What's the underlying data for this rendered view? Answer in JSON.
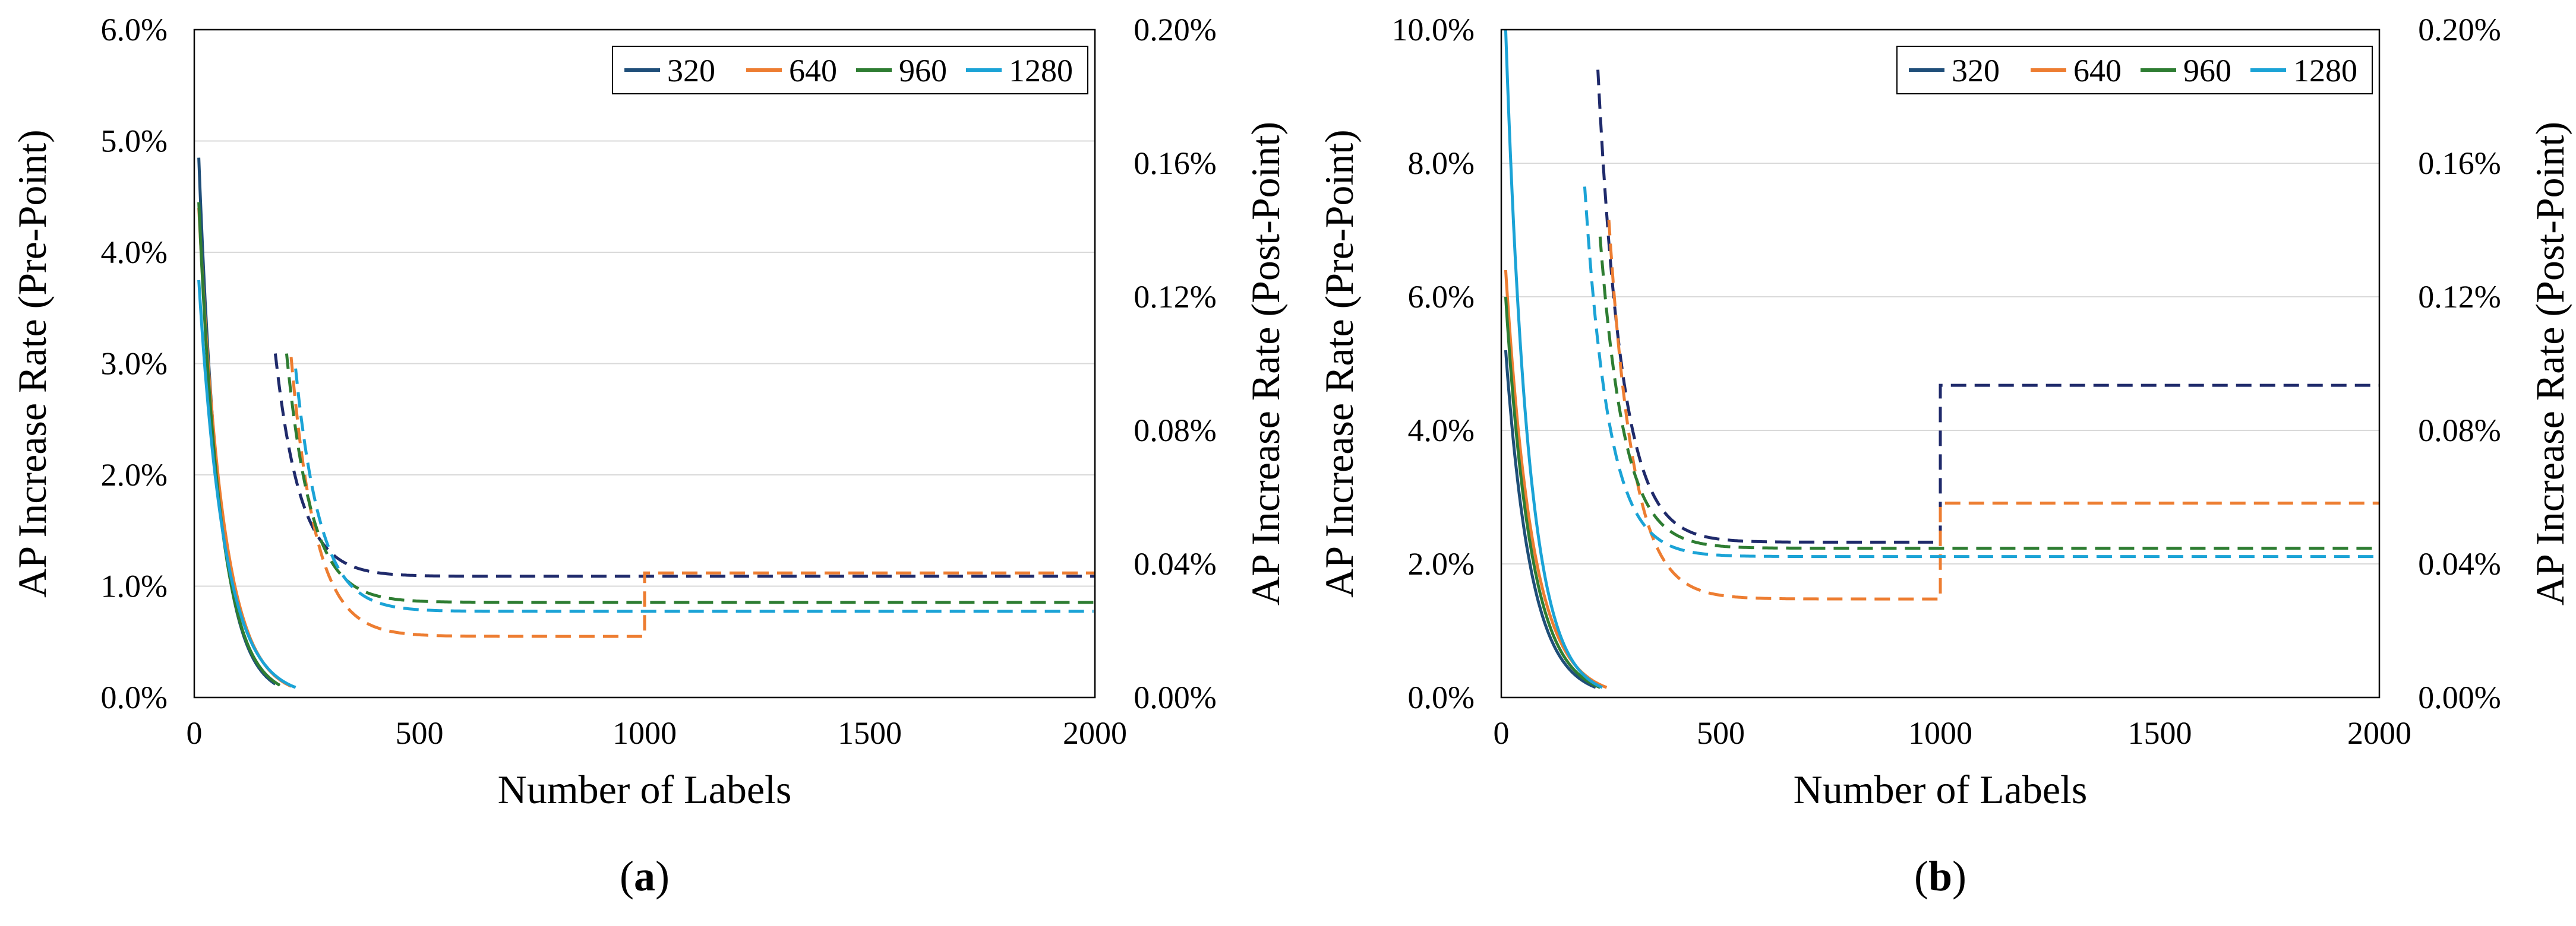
{
  "colors": {
    "s320": "#1f4e79",
    "s640": "#ed7d31",
    "s960": "#2e7d32",
    "s1280": "#1ba3d6",
    "post320": "#1f2a6b",
    "grid": "#d9d9d9"
  },
  "chart_data": [
    {
      "type": "line",
      "panel": "a",
      "caption_letter": "a",
      "xlabel": "Number of Labels",
      "ylabel": "AP Increase Rate (Pre-Point)",
      "y2label": "AP Increase Rate (Post-Point)",
      "xlim": [
        0,
        2000
      ],
      "ylim": [
        0,
        6.0
      ],
      "y2lim": [
        0,
        0.2
      ],
      "x_ticks": [
        0,
        500,
        1000,
        1500,
        2000
      ],
      "y_ticks": [
        0,
        1,
        2,
        3,
        4,
        5,
        6
      ],
      "y2_ticks": [
        0,
        0.04,
        0.08,
        0.12,
        0.16,
        0.2
      ],
      "y_tick_labels": [
        "0.0%",
        "1.0%",
        "2.0%",
        "3.0%",
        "4.0%",
        "5.0%",
        "6.0%"
      ],
      "y2_tick_labels": [
        "0.00%",
        "0.04%",
        "0.08%",
        "0.12%",
        "0.16%",
        "0.20%"
      ],
      "legend": [
        "320",
        "640",
        "960",
        "1280"
      ],
      "series_pre": [
        {
          "name": "320",
          "x0": 10,
          "x1": 180,
          "start": 4.85,
          "end": 0.12
        },
        {
          "name": "640",
          "x0": 10,
          "x1": 215,
          "start": 4.4,
          "end": 0.1
        },
        {
          "name": "960",
          "x0": 10,
          "x1": 190,
          "start": 4.45,
          "end": 0.11
        },
        {
          "name": "1280",
          "x0": 10,
          "x1": 225,
          "start": 3.75,
          "end": 0.09
        }
      ],
      "series_post": [
        {
          "name": "320",
          "x0": 180,
          "start": 0.103,
          "plateau": 0.0363,
          "jump_x": null,
          "after": null
        },
        {
          "name": "640",
          "x0": 215,
          "start": 0.102,
          "plateau": 0.0183,
          "jump_x": 1000,
          "after": 0.0373
        },
        {
          "name": "960",
          "x0": 205,
          "start": 0.103,
          "plateau": 0.0285,
          "jump_x": null,
          "after": null
        },
        {
          "name": "1280",
          "x0": 225,
          "start": 0.0985,
          "plateau": 0.0258,
          "jump_x": null,
          "after": null
        }
      ]
    },
    {
      "type": "line",
      "panel": "b",
      "caption_letter": "b",
      "xlabel": "Number of Labels",
      "ylabel": "AP Increase Rate (Pre-Point)",
      "y2label": "AP Increase Rate (Post-Point)",
      "xlim": [
        0,
        2000
      ],
      "ylim": [
        0,
        10.0
      ],
      "y2lim": [
        0,
        0.2
      ],
      "x_ticks": [
        0,
        500,
        1000,
        1500,
        2000
      ],
      "y_ticks": [
        0,
        2,
        4,
        6,
        8,
        10
      ],
      "y2_ticks": [
        0,
        0.04,
        0.08,
        0.12,
        0.16,
        0.2
      ],
      "y_tick_labels": [
        "0.0%",
        "2.0%",
        "4.0%",
        "6.0%",
        "8.0%",
        "10.0%"
      ],
      "y2_tick_labels": [
        "0.00%",
        "0.04%",
        "0.08%",
        "0.12%",
        "0.16%",
        "0.20%"
      ],
      "legend": [
        "320",
        "640",
        "960",
        "1280"
      ],
      "series_pre": [
        {
          "name": "320",
          "x0": 10,
          "x1": 215,
          "start": 5.2,
          "end": 0.15
        },
        {
          "name": "640",
          "x0": 10,
          "x1": 240,
          "start": 6.4,
          "end": 0.15
        },
        {
          "name": "960",
          "x0": 10,
          "x1": 225,
          "start": 6.0,
          "end": 0.15
        },
        {
          "name": "1280",
          "x0": 10,
          "x1": 230,
          "start": 10.0,
          "end": 0.15
        }
      ],
      "series_post": [
        {
          "name": "320",
          "x0": 220,
          "start": 0.188,
          "plateau": 0.0465,
          "jump_x": 1000,
          "after": 0.0935
        },
        {
          "name": "640",
          "x0": 245,
          "start": 0.143,
          "plateau": 0.0295,
          "jump_x": 1000,
          "after": 0.0582
        },
        {
          "name": "960",
          "x0": 225,
          "start": 0.138,
          "plateau": 0.0447,
          "jump_x": null,
          "after": null
        },
        {
          "name": "1280",
          "x0": 190,
          "start": 0.153,
          "plateau": 0.0422,
          "jump_x": null,
          "after": null
        }
      ]
    }
  ]
}
